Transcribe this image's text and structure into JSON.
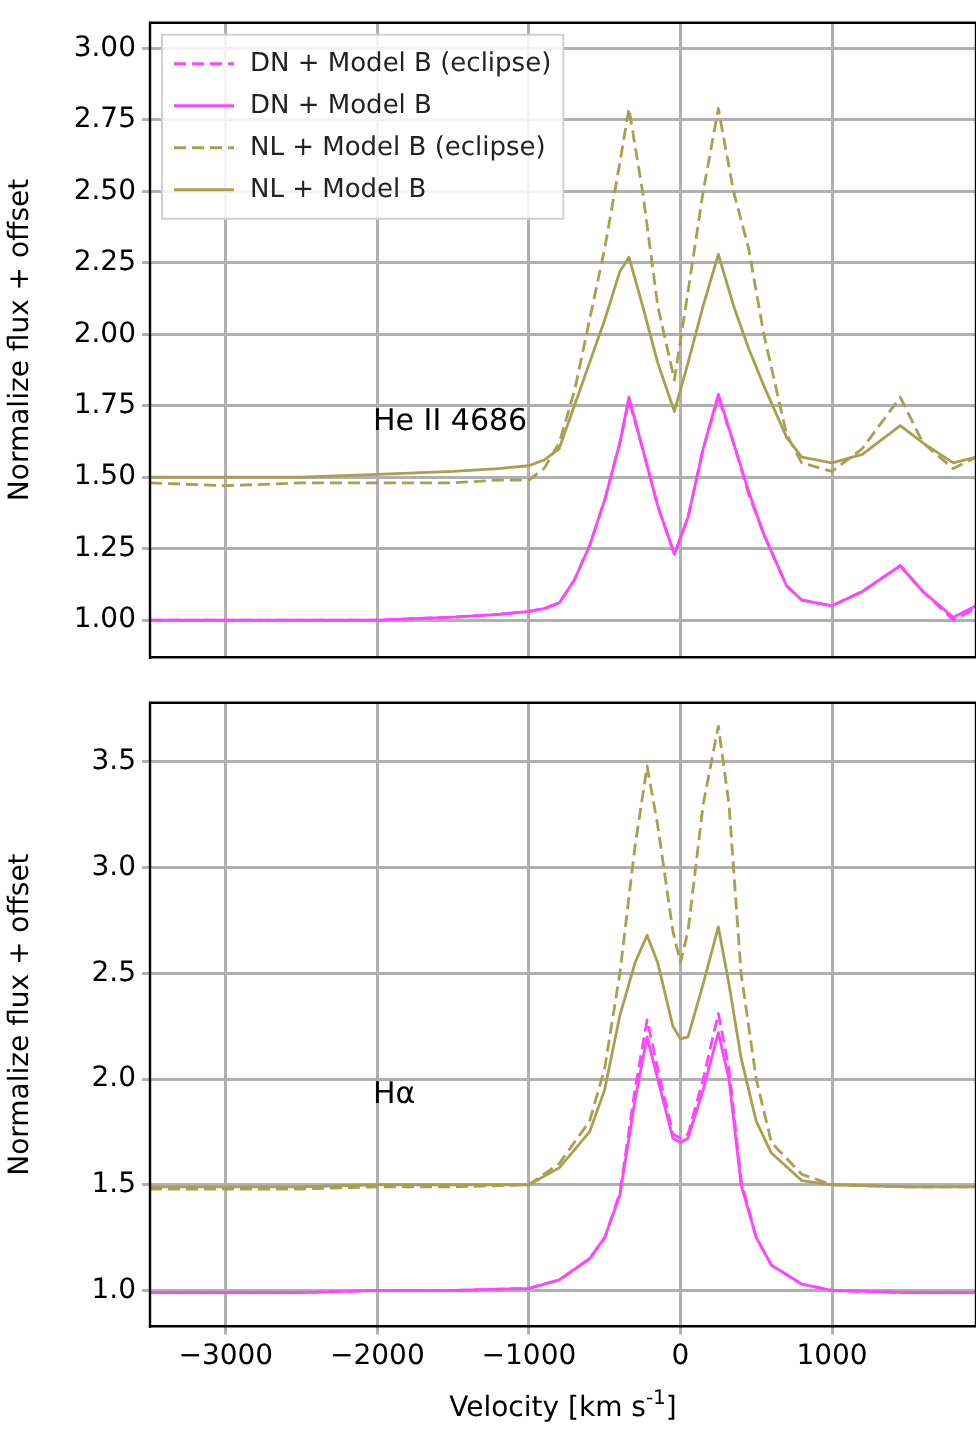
{
  "chart_data": [
    {
      "type": "line",
      "ylabel": "Normalize flux + offset",
      "legend": "top left",
      "grid": true,
      "marker": "none",
      "tick_labels": "y",
      "xlim": [
        -3500,
        1950
      ],
      "xticks": [
        -3000,
        -2000,
        -1000,
        0,
        1000
      ],
      "ylim": [
        0.87,
        3.09
      ],
      "yticks": [
        {
          "value": 1,
          "label": "1.00"
        },
        {
          "value": 1.25,
          "label": "1.25"
        },
        {
          "value": 1.5,
          "label": "1.50"
        },
        {
          "value": 1.75,
          "label": "1.75"
        },
        {
          "value": 2,
          "label": "2.00"
        },
        {
          "value": 2.25,
          "label": "2.25"
        },
        {
          "value": 2.5,
          "label": "2.50"
        },
        {
          "value": 2.75,
          "label": "2.75"
        },
        {
          "value": 3,
          "label": "3.00"
        }
      ],
      "annotations": [
        "He II 4686"
      ],
      "x": [
        -3500,
        -3000,
        -2500,
        -2000,
        -1500,
        -1200,
        -1000,
        -900,
        -800,
        -700,
        -600,
        -500,
        -400,
        -340,
        -250,
        -150,
        -40,
        50,
        150,
        250,
        350,
        450,
        550,
        700,
        800,
        1000,
        1200,
        1450,
        1600,
        1800,
        1950
      ],
      "series": [
        {
          "name": "DN + Model B (eclipse)",
          "color": "#ff44ff",
          "line_style": "dashed",
          "values": [
            1.0,
            1.0,
            1.0,
            1.0,
            1.01,
            1.02,
            1.03,
            1.04,
            1.06,
            1.14,
            1.26,
            1.42,
            1.62,
            1.77,
            1.6,
            1.4,
            1.23,
            1.36,
            1.6,
            1.78,
            1.62,
            1.44,
            1.3,
            1.12,
            1.07,
            1.05,
            1.1,
            1.19,
            1.1,
            1.0,
            1.04
          ]
        },
        {
          "name": "DN + Model B",
          "color": "#ff44ff",
          "line_style": "solid",
          "values": [
            1.0,
            1.0,
            1.0,
            1.0,
            1.01,
            1.02,
            1.03,
            1.04,
            1.06,
            1.14,
            1.26,
            1.42,
            1.62,
            1.78,
            1.6,
            1.4,
            1.23,
            1.36,
            1.6,
            1.79,
            1.62,
            1.45,
            1.3,
            1.12,
            1.07,
            1.05,
            1.1,
            1.19,
            1.1,
            1.01,
            1.05
          ]
        },
        {
          "name": "NL + Model B (eclipse)",
          "color": "#a8a050",
          "line_style": "dashed",
          "values": [
            1.48,
            1.47,
            1.48,
            1.48,
            1.48,
            1.49,
            1.49,
            1.53,
            1.62,
            1.8,
            2.05,
            2.3,
            2.6,
            2.79,
            2.5,
            2.1,
            1.84,
            2.15,
            2.5,
            2.79,
            2.5,
            2.3,
            2.0,
            1.65,
            1.55,
            1.52,
            1.6,
            1.78,
            1.62,
            1.53,
            1.57
          ]
        },
        {
          "name": "NL + Model B",
          "color": "#a8a050",
          "line_style": "solid",
          "values": [
            1.5,
            1.5,
            1.5,
            1.51,
            1.52,
            1.53,
            1.54,
            1.56,
            1.6,
            1.75,
            1.9,
            2.05,
            2.22,
            2.27,
            2.1,
            1.9,
            1.73,
            1.9,
            2.1,
            2.28,
            2.1,
            1.95,
            1.82,
            1.64,
            1.57,
            1.55,
            1.58,
            1.68,
            1.62,
            1.55,
            1.57
          ]
        }
      ]
    },
    {
      "type": "line",
      "xlabel": "Velocity [km s$^{-1}$]",
      "ylabel": "Normalize flux + offset",
      "grid": true,
      "marker": "none",
      "xlim": [
        -3500,
        1950
      ],
      "xticks": [
        {
          "value": -3000,
          "label": "−3000"
        },
        {
          "value": -2000,
          "label": "−2000"
        },
        {
          "value": -1000,
          "label": "−1000"
        },
        0,
        1000
      ],
      "ylim": [
        0.83,
        3.78
      ],
      "yticks": [
        {
          "value": 1,
          "label": "1.0"
        },
        {
          "value": 1.5,
          "label": "1.5"
        },
        {
          "value": 2,
          "label": "2.0"
        },
        {
          "value": 2.5,
          "label": "2.5"
        },
        {
          "value": 3,
          "label": "3.0"
        },
        {
          "value": 3.5,
          "label": "3.5"
        }
      ],
      "annotations": [
        "Hα"
      ],
      "x": [
        -3500,
        -3000,
        -2500,
        -2000,
        -1500,
        -1000,
        -800,
        -600,
        -500,
        -400,
        -300,
        -220,
        -150,
        -50,
        0,
        50,
        150,
        250,
        320,
        400,
        500,
        600,
        800,
        1000,
        1500,
        1950
      ],
      "series": [
        {
          "color": "#ff44ff",
          "line_style": "dashed",
          "values": [
            0.99,
            0.99,
            0.99,
            1.0,
            1.0,
            1.01,
            1.05,
            1.15,
            1.25,
            1.46,
            1.95,
            2.28,
            2.05,
            1.74,
            1.72,
            1.74,
            2.0,
            2.31,
            2.05,
            1.52,
            1.25,
            1.12,
            1.03,
            1.0,
            0.99,
            0.99
          ]
        },
        {
          "color": "#ff44ff",
          "line_style": "solid",
          "values": [
            0.99,
            0.99,
            0.99,
            1.0,
            1.0,
            1.01,
            1.05,
            1.15,
            1.25,
            1.45,
            1.9,
            2.2,
            2.0,
            1.72,
            1.7,
            1.72,
            1.95,
            2.22,
            2.0,
            1.5,
            1.25,
            1.12,
            1.03,
            1.0,
            0.99,
            0.99
          ]
        },
        {
          "color": "#a8a050",
          "line_style": "dashed",
          "values": [
            1.48,
            1.48,
            1.48,
            1.49,
            1.49,
            1.5,
            1.6,
            1.8,
            2.05,
            2.5,
            3.1,
            3.48,
            3.2,
            2.7,
            2.55,
            2.7,
            3.3,
            3.67,
            3.3,
            2.5,
            2.0,
            1.7,
            1.55,
            1.5,
            1.49,
            1.49
          ]
        },
        {
          "color": "#a8a050",
          "line_style": "solid",
          "values": [
            1.49,
            1.49,
            1.49,
            1.5,
            1.5,
            1.5,
            1.58,
            1.75,
            1.95,
            2.3,
            2.55,
            2.68,
            2.55,
            2.25,
            2.19,
            2.2,
            2.45,
            2.72,
            2.45,
            2.1,
            1.8,
            1.65,
            1.52,
            1.5,
            1.49,
            1.49
          ]
        }
      ]
    }
  ]
}
